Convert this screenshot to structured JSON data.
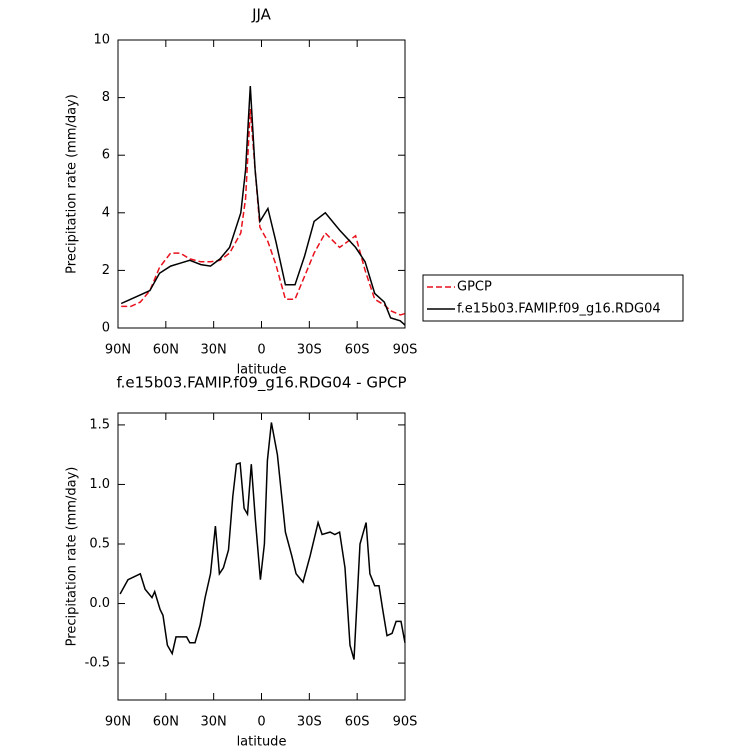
{
  "chart_data": [
    {
      "type": "line",
      "title": "JJA",
      "x_label": "latitude",
      "y_label": "Precipitation rate (mm/day)",
      "x": [
        88,
        82,
        76,
        70,
        64,
        57,
        51,
        45,
        38,
        32,
        26,
        20,
        13,
        10,
        7,
        4,
        1,
        -4,
        -9,
        -15,
        -21,
        -27,
        -33,
        -40,
        -49,
        -59,
        -65,
        -71,
        -77,
        -81,
        -87,
        -90
      ],
      "series": [
        {
          "name": "GPCP",
          "color": "#e8111c",
          "line_style": "dashed",
          "values": [
            0.75,
            0.75,
            0.9,
            1.3,
            2.1,
            2.6,
            2.6,
            2.4,
            2.3,
            2.3,
            2.35,
            2.6,
            3.3,
            4.5,
            7.6,
            5.5,
            3.5,
            3.0,
            2.2,
            1.0,
            1.0,
            1.8,
            2.6,
            3.3,
            2.8,
            3.2,
            2.0,
            1.0,
            0.8,
            0.6,
            0.45,
            0.5
          ]
        },
        {
          "name": "f.e15b03.FAMIP.f09_g16.RDG04",
          "color": "#000000",
          "line_style": "solid",
          "values": [
            0.85,
            1.0,
            1.15,
            1.3,
            1.9,
            2.15,
            2.25,
            2.35,
            2.2,
            2.15,
            2.4,
            2.8,
            4.0,
            5.5,
            8.4,
            5.5,
            3.7,
            4.15,
            3.0,
            1.5,
            1.5,
            2.5,
            3.7,
            4.0,
            3.4,
            2.8,
            2.3,
            1.2,
            0.9,
            0.35,
            0.25,
            0.1
          ]
        }
      ],
      "xlim": [
        90,
        -90
      ],
      "xticks": [
        {
          "value": 90,
          "label": "90N"
        },
        {
          "value": 60,
          "label": "60N"
        },
        {
          "value": 30,
          "label": "30N"
        },
        0,
        {
          "value": -30,
          "label": "30S"
        },
        {
          "value": -60,
          "label": "60S"
        },
        {
          "value": -90,
          "label": "90S"
        }
      ],
      "ylim": [
        0,
        10
      ],
      "yticks": [
        0,
        2,
        4,
        6,
        8,
        10
      ],
      "grid": false,
      "legend": "right"
    },
    {
      "type": "line",
      "title": "f.e15b03.FAMIP.f09_g16.RDG04 - GPCP",
      "x_label": "latitude",
      "y_label": "Precipitation rate (mm/day)",
      "x": [
        88.7,
        83.7,
        76,
        73,
        68.7,
        67,
        63.6,
        61.8,
        59,
        56,
        53.6,
        51,
        47,
        45,
        41.7,
        38.5,
        35.4,
        32,
        28.9,
        26.4,
        23.9,
        20.7,
        18,
        15.7,
        13.4,
        10.9,
        8.8,
        6.4,
        3.8,
        0.7,
        -1.8,
        -3.7,
        -6.2,
        -10,
        -15,
        -19,
        -21.7,
        -26,
        -30.5,
        -35.5,
        -38,
        -43,
        -46,
        -49,
        -52.4,
        -55.5,
        -58,
        -61.8,
        -65.6,
        -68,
        -71,
        -73.7,
        -76,
        -78.7,
        -81.9,
        -84.4,
        -87.5,
        -90
      ],
      "series": [
        {
          "color": "#000000",
          "line_style": "solid",
          "values": [
            0.08,
            0.2,
            0.25,
            0.12,
            0.05,
            0.1,
            -0.05,
            -0.1,
            -0.35,
            -0.42,
            -0.28,
            -0.28,
            -0.28,
            -0.33,
            -0.33,
            -0.18,
            0.05,
            0.25,
            0.65,
            0.25,
            0.3,
            0.45,
            0.9,
            1.17,
            1.18,
            0.8,
            0.75,
            1.17,
            0.7,
            0.2,
            0.5,
            1.2,
            1.52,
            1.25,
            0.6,
            0.4,
            0.25,
            0.18,
            0.4,
            0.68,
            0.58,
            0.6,
            0.58,
            0.6,
            0.3,
            -0.35,
            -0.47,
            0.5,
            0.68,
            0.25,
            0.15,
            0.15,
            -0.05,
            -0.27,
            -0.25,
            -0.15,
            -0.15,
            -0.33
          ]
        }
      ],
      "xlim": [
        90,
        -90
      ],
      "xticks": [
        {
          "value": 90,
          "label": "90N"
        },
        {
          "value": 60,
          "label": "60N"
        },
        {
          "value": 30,
          "label": "30N"
        },
        0,
        {
          "value": -30,
          "label": "30S"
        },
        {
          "value": -60,
          "label": "60S"
        },
        {
          "value": -90,
          "label": "90S"
        }
      ],
      "ylim": [
        -0.81,
        1.6
      ],
      "yticks": [
        -0.5,
        {
          "value": 0,
          "label": "0.0"
        },
        {
          "value": 0.5,
          "label": "0.5"
        },
        {
          "value": 1,
          "label": "1.0"
        },
        {
          "value": 1.5,
          "label": "1.5"
        }
      ],
      "grid": false
    }
  ]
}
